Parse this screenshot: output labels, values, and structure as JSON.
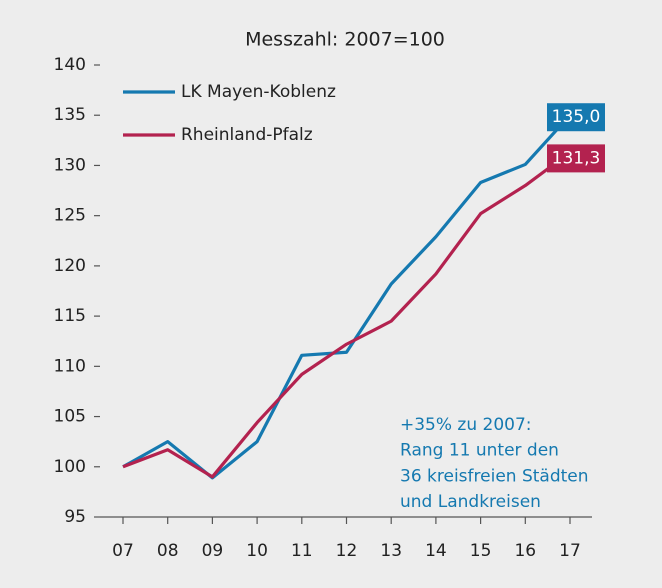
{
  "chart_data": {
    "type": "line",
    "title": "Messzahl: 2007=100",
    "categories": [
      "07",
      "08",
      "09",
      "10",
      "11",
      "12",
      "13",
      "14",
      "15",
      "16",
      "17"
    ],
    "series": [
      {
        "name": "LK Mayen-Koblenz",
        "color": "#1579b0",
        "values": [
          100,
          102.5,
          98.9,
          102.5,
          111.1,
          111.4,
          118.2,
          122.9,
          128.3,
          130.1,
          135.0
        ],
        "value_labels": [
          null,
          null,
          null,
          null,
          null,
          null,
          null,
          null,
          null,
          null,
          "135,0"
        ]
      },
      {
        "name": "Rheinland-Pfalz",
        "color": "#b3224f",
        "values": [
          100,
          101.7,
          99.0,
          104.4,
          109.2,
          112.2,
          114.5,
          119.2,
          125.2,
          128.0,
          131.3
        ],
        "value_labels": [
          null,
          null,
          null,
          null,
          null,
          null,
          null,
          null,
          null,
          null,
          "131,3"
        ]
      }
    ],
    "ylim": [
      95,
      140
    ],
    "yticks": [
      95,
      100,
      105,
      110,
      115,
      120,
      125,
      130,
      135,
      140
    ],
    "grid": false,
    "annotation": [
      "+35% zu 2007:",
      "Rang 11 unter den",
      "36 kreisfreien Städten",
      "und Landkreisen"
    ]
  }
}
